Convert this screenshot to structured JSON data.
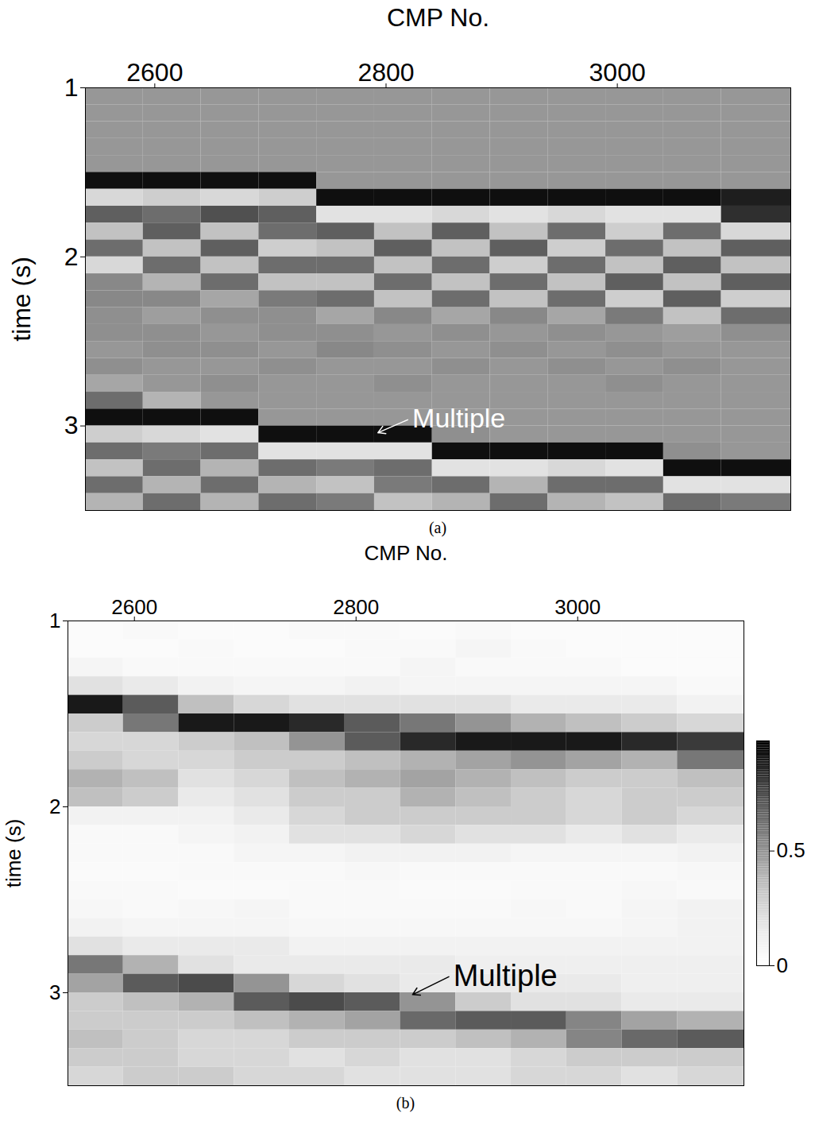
{
  "chart_data": [
    {
      "type": "heatmap",
      "caption": "(a)",
      "x_label": "CMP No.",
      "y_label": "time (s)",
      "xlim": [
        2540,
        3150
      ],
      "ylim": [
        1,
        3.5
      ],
      "xticks": [
        2600,
        2800,
        3000
      ],
      "yticks": [
        1,
        2,
        3
      ],
      "color_range": [
        -1,
        1
      ],
      "x_bins": [
        2540,
        2590,
        2640,
        2690,
        2740,
        2790,
        2840,
        2890,
        2940,
        2990,
        3040,
        3090,
        3150
      ],
      "y_bins": [
        1.0,
        1.1,
        1.2,
        1.3,
        1.4,
        1.5,
        1.6,
        1.7,
        1.8,
        1.9,
        2.0,
        2.1,
        2.2,
        2.3,
        2.4,
        2.5,
        2.6,
        2.7,
        2.8,
        2.9,
        3.0,
        3.1,
        3.2,
        3.3,
        3.4,
        3.5
      ],
      "values": [
        [
          0,
          0,
          0,
          0,
          0,
          0,
          0,
          0,
          0,
          0,
          0,
          0
        ],
        [
          0,
          0,
          0,
          0,
          0,
          0,
          0,
          0,
          0,
          0,
          0,
          0
        ],
        [
          0,
          0,
          0,
          0,
          0,
          0,
          0,
          0,
          0,
          0,
          0,
          0
        ],
        [
          0,
          0,
          0,
          0,
          0,
          0,
          0,
          0,
          0,
          0,
          0,
          0
        ],
        [
          0,
          0,
          0,
          0,
          0,
          0,
          0,
          0,
          0,
          0,
          0,
          0
        ],
        [
          0.9,
          0.9,
          0.9,
          0.9,
          0,
          0,
          0,
          0,
          0,
          0,
          0,
          0
        ],
        [
          -0.5,
          -0.4,
          -0.5,
          -0.4,
          0.9,
          0.9,
          0.9,
          0.9,
          0.9,
          0.9,
          0.9,
          0.8
        ],
        [
          0.4,
          0.3,
          0.5,
          0.4,
          -0.6,
          -0.6,
          -0.5,
          -0.6,
          -0.5,
          -0.6,
          -0.6,
          0.7
        ],
        [
          -0.3,
          0.4,
          -0.3,
          0.3,
          0.4,
          -0.3,
          0.4,
          -0.3,
          0.3,
          -0.4,
          0.3,
          -0.5
        ],
        [
          0.3,
          -0.3,
          0.4,
          -0.4,
          -0.3,
          0.4,
          -0.3,
          0.4,
          -0.4,
          0.3,
          -0.3,
          0.4
        ],
        [
          -0.5,
          0.3,
          -0.3,
          0.3,
          0.3,
          -0.3,
          0.3,
          -0.4,
          0.3,
          -0.3,
          0.4,
          -0.3
        ],
        [
          0.1,
          -0.2,
          0.3,
          -0.3,
          -0.3,
          0.3,
          -0.3,
          0.3,
          -0.3,
          0.4,
          -0.3,
          0.4
        ],
        [
          0.1,
          0.1,
          -0.1,
          0.2,
          0.3,
          -0.3,
          0.3,
          -0.3,
          0.3,
          -0.4,
          0.4,
          -0.4
        ],
        [
          0.05,
          -0.05,
          0.05,
          0.05,
          -0.1,
          0.1,
          -0.1,
          0.1,
          -0.1,
          0.2,
          -0.3,
          0.3
        ],
        [
          0.05,
          0.05,
          0,
          0.05,
          0.05,
          0,
          0.05,
          0,
          0.05,
          0,
          -0.05,
          0.05
        ],
        [
          0,
          0.05,
          0.05,
          0,
          0.1,
          0.05,
          0,
          0.05,
          0,
          0.05,
          0,
          0
        ],
        [
          0.05,
          0,
          0,
          0.05,
          0,
          0,
          0.05,
          0,
          0.05,
          0,
          0.05,
          0
        ],
        [
          -0.1,
          0,
          0.05,
          0,
          0,
          0.05,
          0,
          0,
          0,
          0.05,
          0,
          0
        ],
        [
          0.3,
          -0.2,
          0,
          0,
          0,
          0,
          0,
          0,
          0,
          0,
          0,
          0
        ],
        [
          0.9,
          0.9,
          0.9,
          0,
          0,
          0,
          0,
          0,
          0,
          0,
          0,
          0
        ],
        [
          -0.4,
          -0.5,
          -0.6,
          0.9,
          0.9,
          0.9,
          0.05,
          0,
          0,
          0,
          0,
          0
        ],
        [
          0.3,
          0.2,
          0.3,
          -0.6,
          -0.6,
          -0.6,
          0.9,
          0.9,
          0.9,
          0.9,
          0.05,
          0
        ],
        [
          -0.3,
          0.3,
          -0.2,
          0.3,
          0.2,
          0.3,
          -0.6,
          -0.6,
          -0.5,
          -0.6,
          0.9,
          0.9
        ],
        [
          0.3,
          -0.2,
          0.3,
          -0.2,
          -0.3,
          0.2,
          0.3,
          -0.2,
          0.3,
          0.3,
          -0.6,
          -0.6
        ],
        [
          -0.2,
          0.3,
          -0.2,
          0.3,
          0.2,
          -0.3,
          -0.2,
          0.3,
          -0.2,
          -0.3,
          0.3,
          0.2
        ]
      ],
      "annotations": [
        {
          "text": "Multiple",
          "x": 2820,
          "y": 2.96,
          "arrow_x": 2793,
          "arrow_y": 3.04
        }
      ]
    },
    {
      "type": "heatmap",
      "caption": "(b)",
      "x_label": "CMP No.",
      "y_label": "time (s)",
      "xlim": [
        2540,
        3150
      ],
      "ylim": [
        1,
        3.5
      ],
      "xticks": [
        2600,
        2800,
        3000
      ],
      "yticks": [
        1,
        2,
        3
      ],
      "color_range": [
        0,
        0.98
      ],
      "colorbar": {
        "range": [
          0,
          0.98
        ],
        "ticks": [
          0,
          0.5
        ]
      },
      "x_bins": [
        2540,
        2590,
        2640,
        2690,
        2740,
        2790,
        2840,
        2890,
        2940,
        2990,
        3040,
        3090,
        3150
      ],
      "y_bins": [
        1.0,
        1.1,
        1.2,
        1.3,
        1.4,
        1.5,
        1.6,
        1.7,
        1.8,
        1.9,
        2.0,
        2.1,
        2.2,
        2.3,
        2.4,
        2.5,
        2.6,
        2.7,
        2.8,
        2.9,
        3.0,
        3.1,
        3.2,
        3.3,
        3.4,
        3.5
      ],
      "values": [
        [
          0.03,
          0.05,
          0.03,
          0.03,
          0.05,
          0.05,
          0.03,
          0.05,
          0.03,
          0.03,
          0.03,
          0.03
        ],
        [
          0.03,
          0.03,
          0.05,
          0.03,
          0.03,
          0.05,
          0.05,
          0.08,
          0.05,
          0.03,
          0.03,
          0.03
        ],
        [
          0.08,
          0.05,
          0.05,
          0.05,
          0.05,
          0.05,
          0.08,
          0.05,
          0.05,
          0.05,
          0.03,
          0.03
        ],
        [
          0.2,
          0.15,
          0.1,
          0.08,
          0.08,
          0.1,
          0.08,
          0.08,
          0.08,
          0.08,
          0.08,
          0.05
        ],
        [
          0.9,
          0.7,
          0.35,
          0.25,
          0.2,
          0.2,
          0.2,
          0.2,
          0.15,
          0.15,
          0.15,
          0.1
        ],
        [
          0.3,
          0.6,
          0.9,
          0.9,
          0.85,
          0.7,
          0.6,
          0.5,
          0.4,
          0.35,
          0.3,
          0.25
        ],
        [
          0.25,
          0.25,
          0.3,
          0.35,
          0.5,
          0.7,
          0.85,
          0.9,
          0.9,
          0.9,
          0.85,
          0.8
        ],
        [
          0.3,
          0.25,
          0.25,
          0.3,
          0.3,
          0.35,
          0.4,
          0.45,
          0.5,
          0.45,
          0.4,
          0.6
        ],
        [
          0.4,
          0.35,
          0.2,
          0.25,
          0.35,
          0.4,
          0.45,
          0.4,
          0.35,
          0.3,
          0.3,
          0.35
        ],
        [
          0.35,
          0.3,
          0.15,
          0.2,
          0.3,
          0.3,
          0.4,
          0.35,
          0.3,
          0.25,
          0.3,
          0.3
        ],
        [
          0.1,
          0.1,
          0.1,
          0.15,
          0.25,
          0.3,
          0.3,
          0.3,
          0.3,
          0.25,
          0.3,
          0.25
        ],
        [
          0.05,
          0.05,
          0.08,
          0.1,
          0.2,
          0.2,
          0.25,
          0.2,
          0.2,
          0.15,
          0.2,
          0.15
        ],
        [
          0.05,
          0.05,
          0.05,
          0.08,
          0.08,
          0.1,
          0.1,
          0.1,
          0.08,
          0.08,
          0.08,
          0.1
        ],
        [
          0.04,
          0.04,
          0.05,
          0.05,
          0.05,
          0.06,
          0.05,
          0.05,
          0.05,
          0.05,
          0.05,
          0.06
        ],
        [
          0.05,
          0.05,
          0.04,
          0.04,
          0.05,
          0.05,
          0.04,
          0.04,
          0.05,
          0.05,
          0.06,
          0.05
        ],
        [
          0.06,
          0.05,
          0.06,
          0.08,
          0.05,
          0.05,
          0.05,
          0.05,
          0.06,
          0.05,
          0.08,
          0.1
        ],
        [
          0.1,
          0.08,
          0.08,
          0.08,
          0.06,
          0.06,
          0.06,
          0.06,
          0.06,
          0.06,
          0.08,
          0.1
        ],
        [
          0.2,
          0.15,
          0.15,
          0.15,
          0.1,
          0.1,
          0.1,
          0.1,
          0.1,
          0.1,
          0.1,
          0.1
        ],
        [
          0.6,
          0.4,
          0.2,
          0.15,
          0.15,
          0.15,
          0.15,
          0.12,
          0.12,
          0.12,
          0.12,
          0.12
        ],
        [
          0.45,
          0.7,
          0.75,
          0.5,
          0.25,
          0.2,
          0.15,
          0.15,
          0.15,
          0.15,
          0.12,
          0.12
        ],
        [
          0.3,
          0.35,
          0.4,
          0.7,
          0.75,
          0.7,
          0.5,
          0.3,
          0.2,
          0.2,
          0.15,
          0.15
        ],
        [
          0.3,
          0.3,
          0.3,
          0.35,
          0.4,
          0.45,
          0.65,
          0.7,
          0.7,
          0.55,
          0.45,
          0.4
        ],
        [
          0.35,
          0.3,
          0.25,
          0.25,
          0.3,
          0.3,
          0.3,
          0.35,
          0.4,
          0.55,
          0.65,
          0.7
        ],
        [
          0.3,
          0.3,
          0.25,
          0.25,
          0.2,
          0.25,
          0.2,
          0.2,
          0.25,
          0.3,
          0.3,
          0.3
        ],
        [
          0.25,
          0.3,
          0.3,
          0.25,
          0.25,
          0.2,
          0.2,
          0.2,
          0.25,
          0.25,
          0.2,
          0.25
        ]
      ],
      "annotations": [
        {
          "text": "Multiple",
          "x": 2885,
          "y": 2.91,
          "arrow_x": 2851,
          "arrow_y": 3.01
        }
      ]
    }
  ]
}
